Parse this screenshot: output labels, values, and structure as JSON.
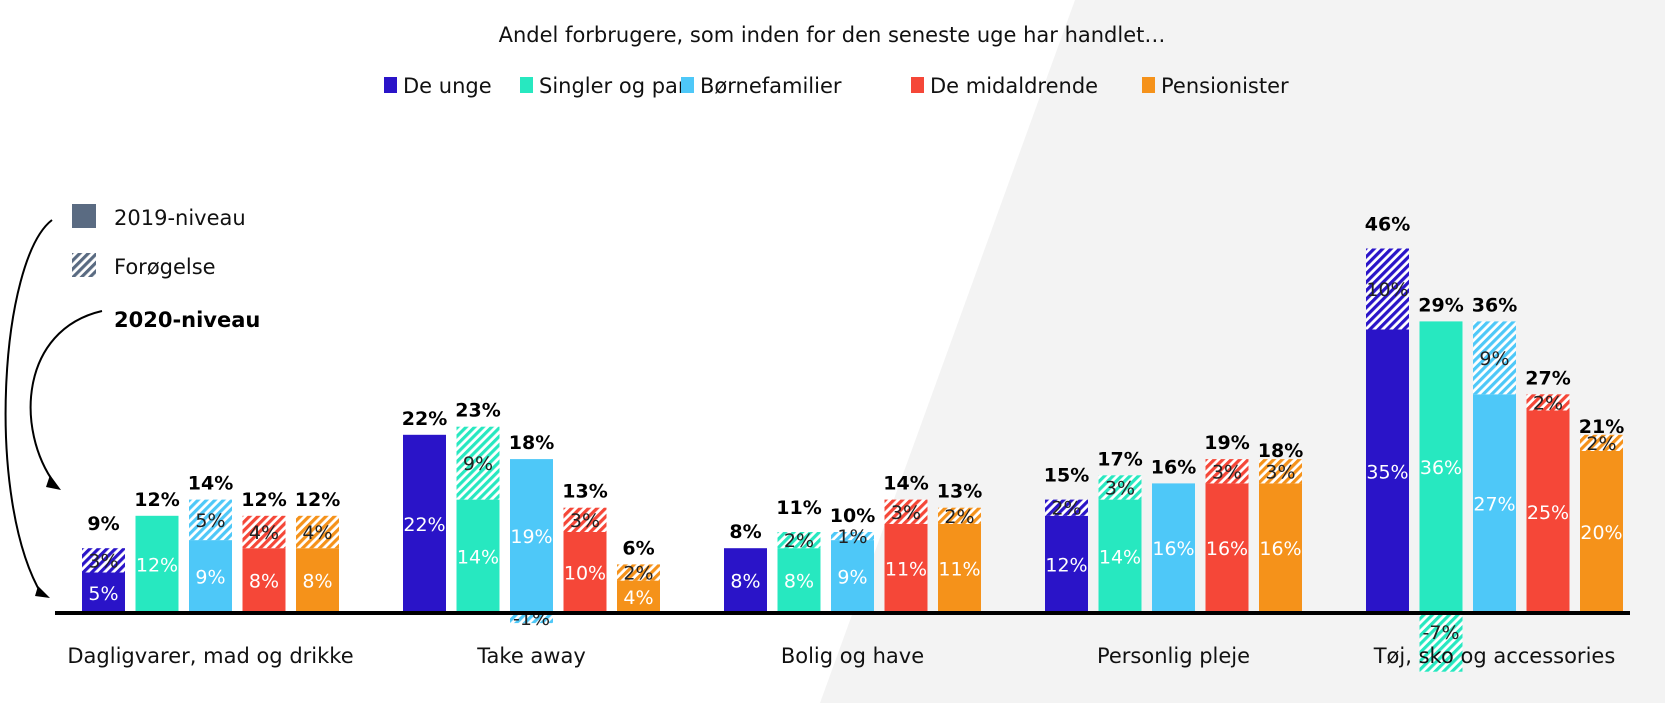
{
  "colors": {
    "De unge": "#2a14c8",
    "Singler og par": "#27e8c0",
    "Børnefamilier": "#4ec8f8",
    "De midaldrende": "#f54738",
    "Pensionister": "#f5921a",
    "key_solid": "#5a6b82",
    "axis": "#000000",
    "background_shape": "#f3f3f3"
  },
  "key": {
    "solid_label": "2019-niveau",
    "hatched_label": "Forøgelse",
    "total_label": "2020-niveau"
  },
  "chart_data": {
    "type": "bar",
    "title": "Andel forbrugere, som inden for den seneste uge har handlet…",
    "categories": [
      "Dagligvarer, mad og drikke",
      "Take away",
      "Bolig og have",
      "Personlig pleje",
      "Tøj, sko og accessories"
    ],
    "series": [
      {
        "name": "De unge",
        "level_2019": [
          5,
          22,
          8,
          12,
          35
        ],
        "change": [
          3,
          null,
          null,
          2,
          10
        ],
        "total_2020": [
          9,
          22,
          8,
          15,
          46
        ]
      },
      {
        "name": "Singler og par",
        "level_2019": [
          12,
          14,
          8,
          14,
          36
        ],
        "change": [
          null,
          9,
          2,
          3,
          -7
        ],
        "total_2020": [
          12,
          23,
          11,
          17,
          29
        ]
      },
      {
        "name": "Børnefamilier",
        "level_2019": [
          9,
          19,
          9,
          16,
          27
        ],
        "change": [
          5,
          -1,
          1,
          null,
          9
        ],
        "total_2020": [
          14,
          18,
          10,
          16,
          36
        ]
      },
      {
        "name": "De midaldrende",
        "level_2019": [
          8,
          10,
          11,
          16,
          25
        ],
        "change": [
          4,
          3,
          3,
          3,
          2
        ],
        "total_2020": [
          12,
          13,
          14,
          19,
          27
        ]
      },
      {
        "name": "Pensionister",
        "level_2019": [
          8,
          4,
          11,
          16,
          20
        ],
        "change": [
          4,
          2,
          2,
          3,
          2
        ],
        "total_2020": [
          12,
          6,
          13,
          18,
          21
        ]
      }
    ],
    "value_format": "%",
    "legend_position": "top-center",
    "grid": false
  }
}
